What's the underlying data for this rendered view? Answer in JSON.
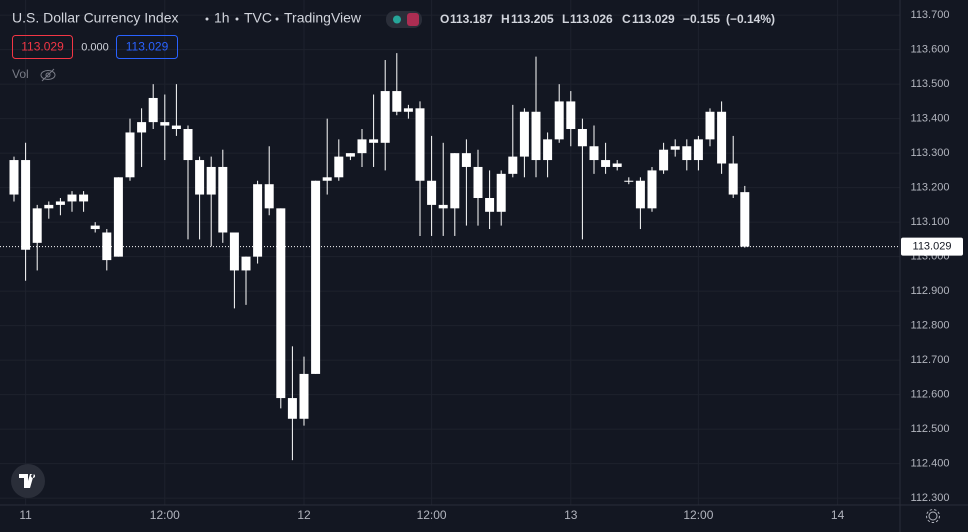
{
  "header": {
    "symbol": "U.S. Dollar Currency Index",
    "interval": "1h",
    "exchange": "TVC",
    "source": "TradingView",
    "ohlc": [
      {
        "key": "O",
        "value": "113.187"
      },
      {
        "key": "H",
        "value": "113.205"
      },
      {
        "key": "L",
        "value": "113.026"
      },
      {
        "key": "C",
        "value": "113.029"
      }
    ],
    "change": "−0.155",
    "change_pct": "(−0.14%)",
    "bid": "113.029",
    "spread": "0.000",
    "ask": "113.029",
    "volume_label": "Vol"
  },
  "chart_data": {
    "type": "candlestick",
    "color": "#ffffff",
    "grid": true,
    "categories": [
      null,
      "11",
      null,
      null,
      null,
      null,
      null,
      null,
      null,
      null,
      null,
      null,
      null,
      "12:00",
      null,
      null,
      null,
      null,
      null,
      null,
      null,
      null,
      null,
      null,
      null,
      "12",
      null,
      null,
      null,
      null,
      null,
      null,
      null,
      null,
      null,
      null,
      "12:00",
      null,
      null,
      null,
      null,
      null,
      null,
      null,
      null,
      null,
      null,
      null,
      "13",
      null,
      null,
      null,
      null,
      null,
      null,
      null,
      null,
      null,
      null,
      "12:00",
      null,
      null,
      null,
      null,
      null,
      null,
      null,
      null,
      null,
      null,
      null,
      "14"
    ],
    "open": [
      113.18,
      113.28,
      113.04,
      113.14,
      113.15,
      113.16,
      113.18,
      113.09,
      113.07,
      113.0,
      113.23,
      113.36,
      113.39,
      113.39,
      113.38,
      113.37,
      113.28,
      113.18,
      113.26,
      113.07,
      112.96,
      113.0,
      113.21,
      113.14,
      112.59,
      112.53,
      112.66,
      113.22,
      113.23,
      113.29,
      113.3,
      113.34,
      113.33,
      113.48,
      113.42,
      113.43,
      113.22,
      113.15,
      113.14,
      113.3,
      113.26,
      113.17,
      113.13,
      113.24,
      113.29,
      113.42,
      113.28,
      113.34,
      113.45,
      113.37,
      113.32,
      113.28,
      113.26,
      113.22,
      113.22,
      113.14,
      113.25,
      113.31,
      113.32,
      113.28,
      113.34,
      113.42,
      113.27,
      113.187,
      null,
      null,
      null,
      null,
      null,
      null,
      null,
      null
    ],
    "high": [
      113.29,
      113.33,
      113.15,
      113.16,
      113.17,
      113.19,
      113.19,
      113.1,
      113.08,
      113.23,
      113.4,
      113.43,
      113.5,
      113.47,
      113.5,
      113.38,
      113.29,
      113.29,
      113.31,
      113.07,
      113.0,
      113.22,
      113.32,
      113.14,
      112.74,
      112.71,
      113.22,
      113.4,
      113.34,
      113.3,
      113.37,
      113.47,
      113.57,
      113.59,
      113.44,
      113.45,
      113.35,
      113.33,
      113.3,
      113.34,
      113.31,
      113.25,
      113.25,
      113.44,
      113.43,
      113.58,
      113.36,
      113.5,
      113.48,
      113.4,
      113.38,
      113.33,
      113.28,
      113.23,
      113.23,
      113.26,
      113.33,
      113.34,
      113.34,
      113.35,
      113.43,
      113.45,
      113.35,
      113.205,
      null,
      null,
      null,
      null,
      null,
      null,
      null,
      null
    ],
    "low": [
      113.16,
      112.93,
      112.96,
      113.11,
      113.12,
      113.13,
      113.13,
      113.07,
      112.96,
      113.0,
      113.22,
      113.26,
      113.37,
      113.28,
      113.35,
      113.05,
      113.05,
      113.03,
      113.04,
      112.85,
      112.86,
      112.98,
      113.12,
      112.56,
      112.41,
      112.51,
      112.66,
      113.18,
      113.22,
      113.28,
      113.26,
      113.26,
      113.25,
      113.41,
      113.4,
      113.06,
      113.06,
      113.06,
      113.06,
      113.09,
      113.09,
      113.08,
      113.09,
      113.23,
      113.23,
      113.23,
      113.23,
      113.33,
      113.32,
      113.05,
      113.24,
      113.24,
      113.25,
      113.21,
      113.08,
      113.13,
      113.24,
      113.29,
      113.25,
      113.25,
      113.32,
      113.24,
      113.17,
      113.026,
      null,
      null,
      null,
      null,
      null,
      null,
      null,
      null
    ],
    "close": [
      113.28,
      113.02,
      113.14,
      113.15,
      113.16,
      113.18,
      113.16,
      113.08,
      112.99,
      113.23,
      113.36,
      113.39,
      113.46,
      113.38,
      113.37,
      113.28,
      113.18,
      113.26,
      113.07,
      112.96,
      113.0,
      113.21,
      113.14,
      112.59,
      112.53,
      112.66,
      113.22,
      113.23,
      113.29,
      113.3,
      113.34,
      113.33,
      113.48,
      113.42,
      113.43,
      113.22,
      113.15,
      113.14,
      113.3,
      113.26,
      113.17,
      113.13,
      113.24,
      113.29,
      113.42,
      113.28,
      113.34,
      113.45,
      113.37,
      113.32,
      113.28,
      113.26,
      113.27,
      113.22,
      113.14,
      113.25,
      113.31,
      113.32,
      113.28,
      113.34,
      113.42,
      113.27,
      113.18,
      113.029,
      null,
      null,
      null,
      null,
      null,
      null,
      null,
      null
    ],
    "ylim": [
      112.28,
      113.744
    ],
    "yticks": [
      {
        "value": 112.3,
        "label": "112.300"
      },
      {
        "value": 112.4,
        "label": "112.400"
      },
      {
        "value": 112.5,
        "label": "112.500"
      },
      {
        "value": 112.6,
        "label": "112.600"
      },
      {
        "value": 112.7,
        "label": "112.700"
      },
      {
        "value": 112.8,
        "label": "112.800"
      },
      {
        "value": 112.9,
        "label": "112.900"
      },
      {
        "value": 113.0,
        "label": "113.000"
      },
      {
        "value": 113.1,
        "label": "113.100"
      },
      {
        "value": 113.2,
        "label": "113.200"
      },
      {
        "value": 113.3,
        "label": "113.300"
      },
      {
        "value": 113.4,
        "label": "113.400"
      },
      {
        "value": 113.5,
        "label": "113.500"
      },
      {
        "value": 113.6,
        "label": "113.600"
      },
      {
        "value": 113.7,
        "label": "113.700"
      }
    ]
  }
}
